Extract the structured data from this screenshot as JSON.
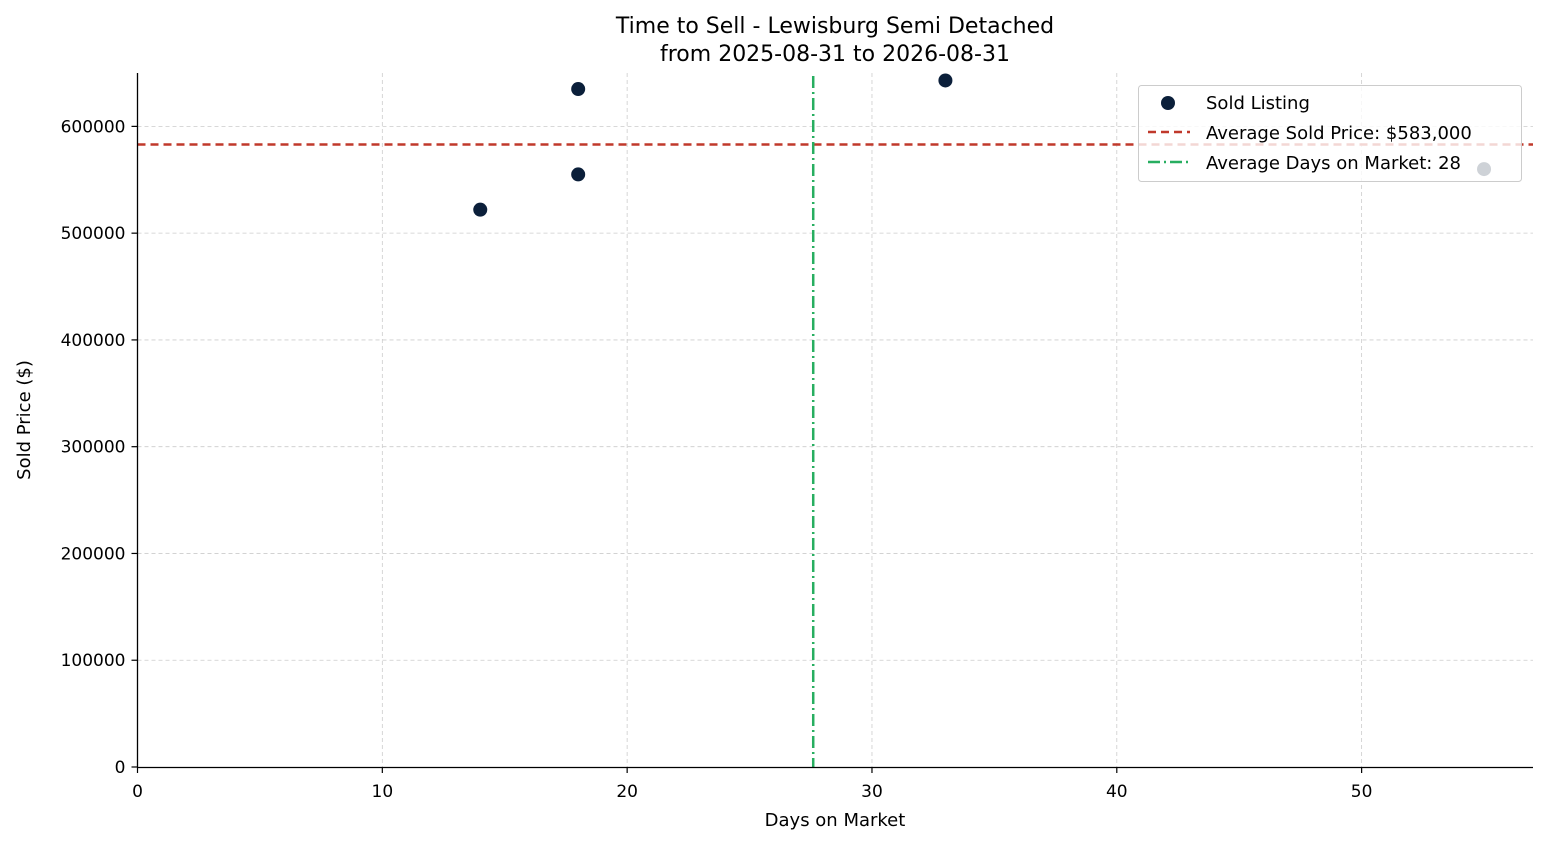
{
  "chart_data": {
    "type": "scatter",
    "title_line1": "Time to Sell - Lewisburg Semi Detached",
    "title_line2": "from 2025-08-31 to 2026-08-31",
    "xlabel": "Days on Market",
    "ylabel": "Sold Price ($)",
    "xlim": [
      0,
      57
    ],
    "ylim": [
      0,
      650000
    ],
    "x_ticks": [
      0,
      10,
      20,
      30,
      40,
      50
    ],
    "y_ticks": [
      0,
      100000,
      200000,
      300000,
      400000,
      500000,
      600000
    ],
    "grid": true,
    "legend_position": "top-right",
    "series": [
      {
        "name": "Sold Listing",
        "color": "#0b1f3a",
        "points": [
          {
            "x": 14,
            "y": 522000
          },
          {
            "x": 18,
            "y": 555000
          },
          {
            "x": 18,
            "y": 635000
          },
          {
            "x": 33,
            "y": 643000
          },
          {
            "x": 55,
            "y": 560000
          }
        ]
      }
    ],
    "reference_lines": {
      "avg_price": {
        "label": "Average Sold Price: $583,000",
        "value": 583000,
        "color": "#c0392b",
        "style": "dashed"
      },
      "avg_days": {
        "label": "Average Days on Market: 28",
        "value": 27.6,
        "color": "#27ae60",
        "style": "dashdot"
      }
    }
  }
}
